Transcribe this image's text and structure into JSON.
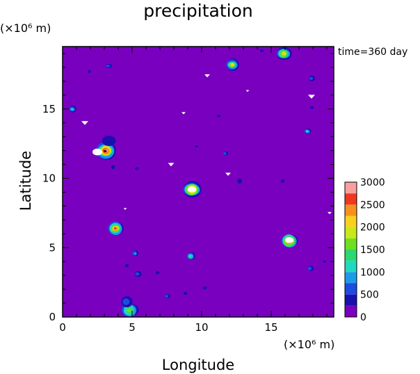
{
  "chart_data": {
    "type": "heatmap",
    "title": "precipitation",
    "annotation": "time=360 day",
    "xlabel": "Longitude",
    "ylabel": "Latitude",
    "x_unit": "(×10⁶ m)",
    "y_unit": "(×10⁶ m)",
    "xlim": [
      0,
      19.5
    ],
    "ylim": [
      0,
      19.5
    ],
    "xticks": [
      {
        "value": 0,
        "label": "0"
      },
      {
        "value": 5,
        "label": "5"
      },
      {
        "value": 10,
        "label": "10"
      },
      {
        "value": 15,
        "label": "15"
      }
    ],
    "yticks": [
      {
        "value": 0,
        "label": "0"
      },
      {
        "value": 5,
        "label": "5"
      },
      {
        "value": 10,
        "label": "10"
      },
      {
        "value": 15,
        "label": "15"
      }
    ],
    "background_value": 0,
    "colorbar": {
      "levels": [
        0,
        250,
        500,
        750,
        1000,
        1250,
        1500,
        1750,
        2000,
        2250,
        2500,
        2750,
        3000
      ],
      "labels": [
        {
          "value": 0,
          "label": "0"
        },
        {
          "value": 500,
          "label": "500"
        },
        {
          "value": 1000,
          "label": "1000"
        },
        {
          "value": 1500,
          "label": "1500"
        },
        {
          "value": 2000,
          "label": "2000"
        },
        {
          "value": 2500,
          "label": "2500"
        },
        {
          "value": 3000,
          "label": "3000"
        }
      ],
      "colors": [
        "#7a00c0",
        "#1a10b0",
        "#1e4be0",
        "#1d9be8",
        "#22d8c0",
        "#2cd870",
        "#6ee020",
        "#c8e818",
        "#f8d020",
        "#f89020",
        "#f03820",
        "#f8a0a0"
      ]
    },
    "cells": [
      {
        "x": 3.1,
        "y": 12.0,
        "peak": 3000,
        "r": 0.7
      },
      {
        "x": 9.3,
        "y": 9.2,
        "peak": 3000,
        "r": 0.65
      },
      {
        "x": 16.3,
        "y": 5.5,
        "peak": 3000,
        "r": 0.6
      },
      {
        "x": 3.8,
        "y": 6.4,
        "peak": 2600,
        "r": 0.55
      },
      {
        "x": 12.2,
        "y": 18.2,
        "peak": 2000,
        "r": 0.45
      },
      {
        "x": 15.9,
        "y": 19.0,
        "peak": 2000,
        "r": 0.55
      },
      {
        "x": 4.8,
        "y": 0.5,
        "peak": 1500,
        "r": 0.65
      },
      {
        "x": 9.2,
        "y": 4.4,
        "peak": 1400,
        "r": 0.3
      },
      {
        "x": 0.7,
        "y": 15.0,
        "peak": 1200,
        "r": 0.25
      },
      {
        "x": 17.6,
        "y": 13.4,
        "peak": 1000,
        "r": 0.25
      },
      {
        "x": 3.3,
        "y": 12.7,
        "peak": 400,
        "r": 0.5
      },
      {
        "x": 5.2,
        "y": 4.6,
        "peak": 800,
        "r": 0.22
      },
      {
        "x": 17.9,
        "y": 17.2,
        "peak": 700,
        "r": 0.22
      },
      {
        "x": 3.3,
        "y": 18.1,
        "peak": 700,
        "r": 0.22
      },
      {
        "x": 11.7,
        "y": 11.8,
        "peak": 600,
        "r": 0.18
      },
      {
        "x": 4.6,
        "y": 1.1,
        "peak": 600,
        "r": 0.4
      },
      {
        "x": 5.4,
        "y": 3.1,
        "peak": 700,
        "r": 0.25
      },
      {
        "x": 7.5,
        "y": 1.5,
        "peak": 500,
        "r": 0.22
      },
      {
        "x": 17.8,
        "y": 3.5,
        "peak": 500,
        "r": 0.22
      },
      {
        "x": 12.7,
        "y": 9.8,
        "peak": 400,
        "r": 0.18
      },
      {
        "x": 10.2,
        "y": 2.1,
        "peak": 300,
        "r": 0.15
      },
      {
        "x": 8.8,
        "y": 1.7,
        "peak": 300,
        "r": 0.15
      },
      {
        "x": 4.6,
        "y": 3.7,
        "peak": 300,
        "r": 0.13
      },
      {
        "x": 6.8,
        "y": 3.2,
        "peak": 300,
        "r": 0.13
      },
      {
        "x": 14.3,
        "y": 19.2,
        "peak": 300,
        "r": 0.15
      },
      {
        "x": 11.2,
        "y": 14.5,
        "peak": 300,
        "r": 0.13
      },
      {
        "x": 15.8,
        "y": 9.8,
        "peak": 300,
        "r": 0.13
      },
      {
        "x": 17.9,
        "y": 15.1,
        "peak": 300,
        "r": 0.12
      },
      {
        "x": 18.8,
        "y": 4.0,
        "peak": 300,
        "r": 0.12
      },
      {
        "x": 1.9,
        "y": 17.7,
        "peak": 300,
        "r": 0.12
      },
      {
        "x": 3.6,
        "y": 10.8,
        "peak": 300,
        "r": 0.15
      },
      {
        "x": 5.3,
        "y": 10.7,
        "peak": 300,
        "r": 0.13
      },
      {
        "x": 9.6,
        "y": 12.3,
        "peak": 300,
        "r": 0.12
      }
    ],
    "gaps": [
      {
        "x": 2.5,
        "y": 11.9,
        "shape": "blob",
        "size": 0.35
      },
      {
        "x": 9.3,
        "y": 9.2,
        "shape": "blob",
        "size": 0.3
      },
      {
        "x": 16.3,
        "y": 5.55,
        "shape": "blob",
        "size": 0.3
      },
      {
        "x": 1.6,
        "y": 14.0,
        "shape": "tri",
        "size": 0.25
      },
      {
        "x": 10.4,
        "y": 17.4,
        "shape": "tri",
        "size": 0.2
      },
      {
        "x": 17.9,
        "y": 15.9,
        "shape": "tri",
        "size": 0.25
      },
      {
        "x": 7.8,
        "y": 11.0,
        "shape": "tri",
        "size": 0.22
      },
      {
        "x": 11.9,
        "y": 10.3,
        "shape": "tri",
        "size": 0.2
      },
      {
        "x": 13.3,
        "y": 16.3,
        "shape": "tri",
        "size": 0.12
      },
      {
        "x": 8.7,
        "y": 14.7,
        "shape": "tri",
        "size": 0.15
      },
      {
        "x": 4.5,
        "y": 7.8,
        "shape": "tri",
        "size": 0.12
      },
      {
        "x": 19.2,
        "y": 7.5,
        "shape": "tri",
        "size": 0.15
      }
    ]
  }
}
